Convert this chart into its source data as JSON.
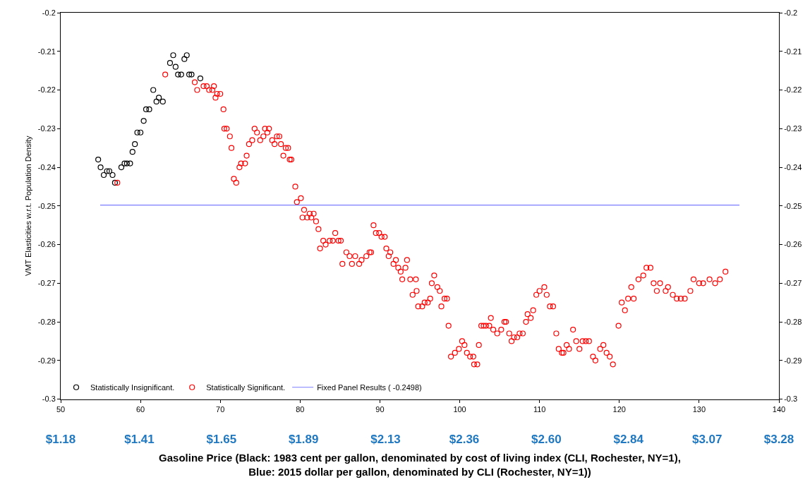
{
  "chart_data": {
    "type": "scatter",
    "xlabel": "Gasoline Price (Black: 1983 cent per gallon, denominated by cost of living index (CLI, Rochester, NY=1), Blue: 2015 dollar per gallon, denominated by CLI (Rochester, NY=1))",
    "ylabel": "VMT Elasticities w.r.t. Population Density",
    "xlim": [
      50,
      140
    ],
    "xticks": [
      50,
      60,
      70,
      80,
      90,
      100,
      110,
      120,
      130,
      140
    ],
    "x2lim": [
      1.18,
      3.28
    ],
    "x2ticks": [
      {
        "value": 1.18,
        "label": "$1.18"
      },
      {
        "value": 1.41,
        "label": "$1.41"
      },
      {
        "value": 1.65,
        "label": "$1.65"
      },
      {
        "value": 1.89,
        "label": "$1.89"
      },
      {
        "value": 2.13,
        "label": "$2.13"
      },
      {
        "value": 2.36,
        "label": "$2.36"
      },
      {
        "value": 2.6,
        "label": "$2.60"
      },
      {
        "value": 2.84,
        "label": "$2.84"
      },
      {
        "value": 3.07,
        "label": "$3.07"
      },
      {
        "value": 3.28,
        "label": "$3.28"
      }
    ],
    "ylim": [
      -0.3,
      -0.2
    ],
    "yticks": [
      -0.3,
      -0.29,
      -0.28,
      -0.27,
      -0.26,
      -0.25,
      -0.24,
      -0.23,
      -0.22,
      -0.21,
      -0.2
    ],
    "y2lim": [
      -0.3,
      -0.2
    ],
    "y2ticks": [
      -0.3,
      -0.29,
      -0.28,
      -0.27,
      -0.26,
      -0.25,
      -0.24,
      -0.23,
      -0.22,
      -0.21,
      -0.2
    ],
    "legend": "bottom",
    "marker": "circle",
    "series": [
      {
        "name": "Statistically Insignificant.",
        "color": "#000000",
        "x": [
          54.7,
          55.0,
          55.4,
          55.8,
          56.1,
          56.5,
          56.8,
          57.6,
          58.0,
          58.3,
          58.7,
          59.0,
          59.3,
          59.6,
          60.0,
          60.4,
          60.7,
          61.1,
          61.6,
          62.0,
          62.3,
          62.8,
          63.7,
          64.1,
          64.4,
          64.7,
          65.1,
          65.5,
          65.8,
          66.1,
          66.4,
          67.5
        ],
        "values": [
          -0.238,
          -0.24,
          -0.242,
          -0.241,
          -0.241,
          -0.242,
          -0.244,
          -0.24,
          -0.239,
          -0.239,
          -0.239,
          -0.236,
          -0.234,
          -0.231,
          -0.231,
          -0.228,
          -0.225,
          -0.225,
          -0.22,
          -0.223,
          -0.222,
          -0.223,
          -0.213,
          -0.211,
          -0.214,
          -0.216,
          -0.216,
          -0.212,
          -0.211,
          -0.216,
          -0.216,
          -0.217
        ]
      },
      {
        "name": "Statistically Significant.",
        "color": "#ff0000",
        "x": [
          57.1,
          63.1,
          66.8,
          67.1,
          67.9,
          68.3,
          68.6,
          69.0,
          69.2,
          69.4,
          69.6,
          70.0,
          70.4,
          70.5,
          70.8,
          71.2,
          71.4,
          71.7,
          72.0,
          72.4,
          72.6,
          73.1,
          73.3,
          73.6,
          74.0,
          74.3,
          74.6,
          75.0,
          75.4,
          75.6,
          75.9,
          76.1,
          76.5,
          76.8,
          77.1,
          77.4,
          77.6,
          77.9,
          78.2,
          78.5,
          78.7,
          78.9,
          79.4,
          79.6,
          80.1,
          80.5,
          80.3,
          80.9,
          81.2,
          81.4,
          81.7,
          82.0,
          82.3,
          82.5,
          82.9,
          83.2,
          83.7,
          84.1,
          84.4,
          84.8,
          85.1,
          85.3,
          85.8,
          86.2,
          86.5,
          86.9,
          87.4,
          87.7,
          88.3,
          88.7,
          88.9,
          89.2,
          89.5,
          89.9,
          90.2,
          90.6,
          90.8,
          91.1,
          91.3,
          91.7,
          92.0,
          92.3,
          92.6,
          92.8,
          93.2,
          93.4,
          93.8,
          94.1,
          94.5,
          94.6,
          94.8,
          95.3,
          95.6,
          96.0,
          96.3,
          96.5,
          96.8,
          97.2,
          97.5,
          97.7,
          98.1,
          98.4,
          98.6,
          98.9,
          99.4,
          99.9,
          100.3,
          100.6,
          100.9,
          101.3,
          101.7,
          101.8,
          102.2,
          102.4,
          102.7,
          103.0,
          103.3,
          103.7,
          103.9,
          104.2,
          104.7,
          105.2,
          105.6,
          105.8,
          106.2,
          106.5,
          106.8,
          107.2,
          107.5,
          107.9,
          108.3,
          108.5,
          108.9,
          109.2,
          109.6,
          110.0,
          110.6,
          110.9,
          111.3,
          111.7,
          112.1,
          112.4,
          112.8,
          113.0,
          113.4,
          113.7,
          114.2,
          114.6,
          115.0,
          115.4,
          115.8,
          116.2,
          116.7,
          117.0,
          117.6,
          118.0,
          118.4,
          118.8,
          119.2,
          119.9,
          120.3,
          120.7,
          121.1,
          121.5,
          121.8,
          122.4,
          123.0,
          123.4,
          123.9,
          124.3,
          124.7,
          125.1,
          125.8,
          126.1,
          126.7,
          127.2,
          127.7,
          128.2,
          128.9,
          129.3,
          130.0,
          130.5,
          131.3,
          132.0,
          132.6,
          133.3
        ],
        "values": [
          -0.244,
          -0.216,
          -0.218,
          -0.22,
          -0.219,
          -0.219,
          -0.22,
          -0.22,
          -0.219,
          -0.222,
          -0.221,
          -0.221,
          -0.225,
          -0.23,
          -0.23,
          -0.232,
          -0.235,
          -0.243,
          -0.244,
          -0.24,
          -0.239,
          -0.239,
          -0.237,
          -0.234,
          -0.233,
          -0.23,
          -0.231,
          -0.233,
          -0.232,
          -0.23,
          -0.231,
          -0.23,
          -0.233,
          -0.234,
          -0.232,
          -0.232,
          -0.234,
          -0.237,
          -0.235,
          -0.235,
          -0.238,
          -0.238,
          -0.245,
          -0.249,
          -0.248,
          -0.251,
          -0.253,
          -0.253,
          -0.252,
          -0.253,
          -0.252,
          -0.254,
          -0.256,
          -0.261,
          -0.259,
          -0.26,
          -0.259,
          -0.259,
          -0.257,
          -0.259,
          -0.259,
          -0.265,
          -0.262,
          -0.263,
          -0.265,
          -0.263,
          -0.265,
          -0.264,
          -0.263,
          -0.262,
          -0.262,
          -0.255,
          -0.257,
          -0.257,
          -0.258,
          -0.258,
          -0.261,
          -0.263,
          -0.262,
          -0.265,
          -0.264,
          -0.266,
          -0.267,
          -0.269,
          -0.266,
          -0.264,
          -0.269,
          -0.273,
          -0.269,
          -0.272,
          -0.276,
          -0.276,
          -0.275,
          -0.275,
          -0.274,
          -0.27,
          -0.268,
          -0.271,
          -0.272,
          -0.276,
          -0.274,
          -0.274,
          -0.281,
          -0.289,
          -0.288,
          -0.287,
          -0.285,
          -0.286,
          -0.288,
          -0.289,
          -0.289,
          -0.291,
          -0.291,
          -0.286,
          -0.281,
          -0.281,
          -0.281,
          -0.281,
          -0.279,
          -0.282,
          -0.283,
          -0.282,
          -0.28,
          -0.28,
          -0.283,
          -0.285,
          -0.284,
          -0.284,
          -0.283,
          -0.283,
          -0.28,
          -0.278,
          -0.279,
          -0.277,
          -0.273,
          -0.272,
          -0.271,
          -0.273,
          -0.276,
          -0.276,
          -0.283,
          -0.287,
          -0.288,
          -0.288,
          -0.286,
          -0.287,
          -0.282,
          -0.285,
          -0.287,
          -0.285,
          -0.285,
          -0.285,
          -0.289,
          -0.29,
          -0.287,
          -0.286,
          -0.288,
          -0.289,
          -0.291,
          -0.281,
          -0.275,
          -0.277,
          -0.274,
          -0.271,
          -0.274,
          -0.269,
          -0.268,
          -0.266,
          -0.266,
          -0.27,
          -0.272,
          -0.27,
          -0.272,
          -0.271,
          -0.273,
          -0.274,
          -0.274,
          -0.274,
          -0.272,
          -0.269,
          -0.27,
          -0.27,
          -0.269,
          -0.27,
          -0.269,
          -0.267
        ]
      }
    ],
    "ref_lines": [
      {
        "axis": "y",
        "value": -0.2498,
        "label": "Fixed Panel Results ( -0.2498)",
        "color": "#7b7bff",
        "line_style": "solid"
      }
    ]
  }
}
